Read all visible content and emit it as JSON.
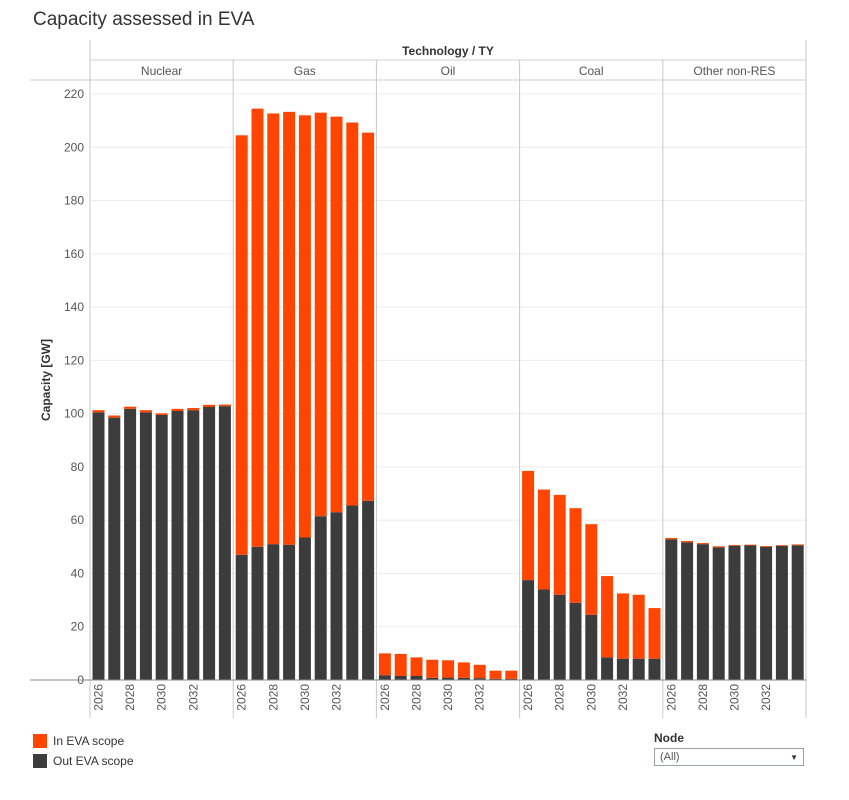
{
  "title": "Capacity assessed in EVA",
  "legend": {
    "in_label": "In EVA scope",
    "out_label": "Out EVA scope"
  },
  "filter": {
    "label": "Node",
    "value": "(All)"
  },
  "colors": {
    "in": "#ff4500",
    "out": "#3c3c3c",
    "grid": "#ececec",
    "divider": "#c8c8c8"
  },
  "chart_data": {
    "type": "bar",
    "stacked": true,
    "title": "Capacity assessed in EVA",
    "column_header": "Technology / TY",
    "ylabel": "Capacity [GW]",
    "ylim": [
      0,
      222
    ],
    "yticks": [
      0,
      20,
      40,
      60,
      80,
      100,
      120,
      140,
      160,
      180,
      200,
      220
    ],
    "years": [
      2026,
      2027,
      2028,
      2029,
      2030,
      2031,
      2032,
      2033,
      2034
    ],
    "xtick_labels": [
      "2026",
      "2028",
      "2030",
      "2032"
    ],
    "stack_order": [
      "Out EVA scope",
      "In EVA scope"
    ],
    "panels": [
      {
        "name": "Nuclear",
        "out": [
          100.5,
          98.5,
          101.8,
          100.5,
          99.5,
          101.0,
          101.3,
          102.5,
          102.8
        ],
        "in": [
          0.8,
          0.8,
          0.8,
          0.8,
          0.6,
          0.8,
          0.8,
          0.8,
          0.6
        ]
      },
      {
        "name": "Gas",
        "out": [
          47.0,
          50.0,
          51.0,
          50.8,
          53.5,
          61.5,
          63.0,
          65.5,
          67.3
        ],
        "in": [
          157.5,
          164.5,
          161.7,
          162.5,
          158.5,
          151.5,
          148.5,
          143.8,
          138.2
        ]
      },
      {
        "name": "Oil",
        "out": [
          1.8,
          1.5,
          1.5,
          0.8,
          0.9,
          0.8,
          0.7,
          0.4,
          0.4
        ],
        "in": [
          8.2,
          8.3,
          7.0,
          6.8,
          6.5,
          5.8,
          5.0,
          3.1,
          3.1
        ]
      },
      {
        "name": "Coal",
        "out": [
          37.5,
          34.0,
          32.0,
          29.0,
          24.5,
          8.5,
          8.0,
          8.0,
          8.0
        ],
        "in": [
          41.0,
          37.5,
          37.5,
          35.5,
          34.0,
          30.5,
          24.5,
          24.0,
          19.0
        ]
      },
      {
        "name": "Other non-RES",
        "out": [
          52.8,
          51.7,
          51.0,
          49.8,
          50.4,
          50.5,
          50.0,
          50.3,
          50.6
        ],
        "in": [
          0.5,
          0.5,
          0.4,
          0.4,
          0.3,
          0.3,
          0.3,
          0.3,
          0.3
        ]
      }
    ]
  }
}
